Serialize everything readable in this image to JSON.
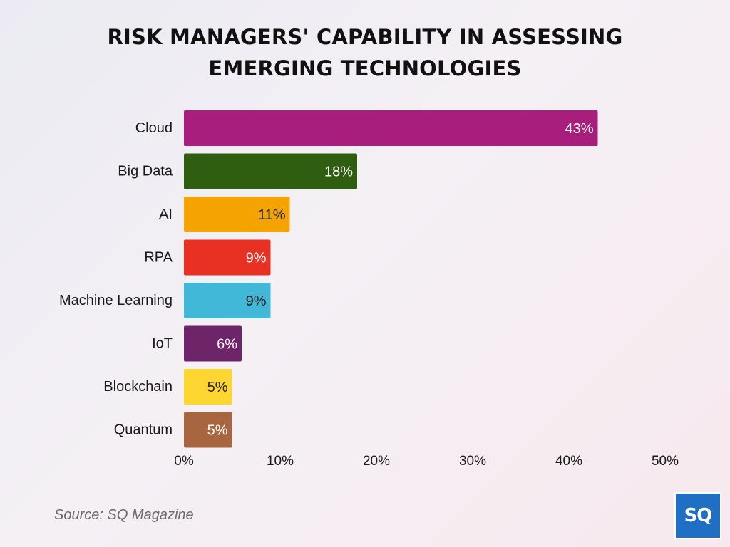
{
  "title_line1": "RISK MANAGERS' CAPABILITY IN ASSESSING",
  "title_line2": "EMERGING TECHNOLOGIES",
  "source": "Source: SQ Magazine",
  "logo_text": "SQ",
  "chart_data": {
    "type": "bar",
    "orientation": "horizontal",
    "title": "RISK MANAGERS' CAPABILITY IN ASSESSING EMERGING TECHNOLOGIES",
    "categories": [
      "Cloud",
      "Big Data",
      "AI",
      "RPA",
      "Machine Learning",
      "IoT",
      "Blockchain",
      "Quantum"
    ],
    "values": [
      43,
      18,
      11,
      9,
      9,
      6,
      5,
      5
    ],
    "data_labels": [
      "43%",
      "18%",
      "11%",
      "9%",
      "9%",
      "6%",
      "5%",
      "5%"
    ],
    "colors": [
      "#a81e7c",
      "#2f5e10",
      "#f5a300",
      "#e83023",
      "#42b8d8",
      "#6d2469",
      "#fed631",
      "#a86640"
    ],
    "label_colors": [
      "#ffffff",
      "#ffffff",
      "#222222",
      "#ffffff",
      "#222222",
      "#ffffff",
      "#222222",
      "#ffffff"
    ],
    "xlim": [
      0,
      50
    ],
    "xticks": [
      0,
      10,
      20,
      30,
      40,
      50
    ],
    "xtick_labels": [
      "0%",
      "10%",
      "20%",
      "30%",
      "40%",
      "50%"
    ],
    "grid": false,
    "legend": "none"
  }
}
